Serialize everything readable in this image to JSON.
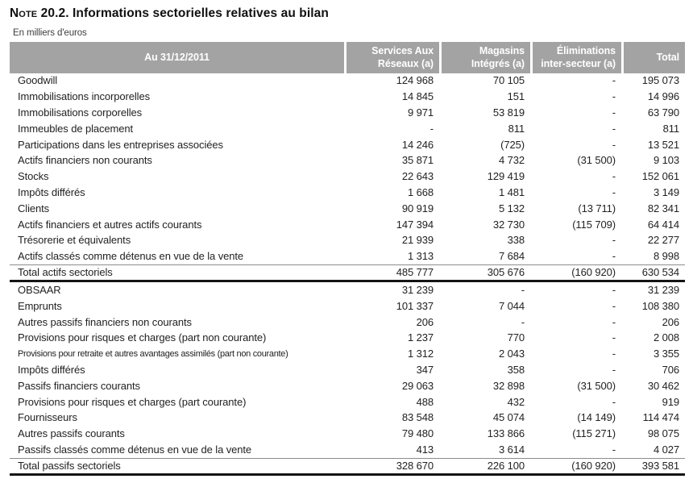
{
  "title": {
    "prefix": "Note",
    "rest": " 20.2. Informations sectorielles relatives au bilan"
  },
  "subtitle": "En milliers d'euros",
  "colors": {
    "header_bg": "#a3a3a3",
    "header_text": "#ffffff",
    "body_text": "#222222",
    "total_rule": "#141414",
    "thin_rule": "#8c8c8c"
  },
  "table": {
    "columns": [
      "Au 31/12/2011",
      "Services Aux Réseaux (a)",
      "Magasins Intégrés (a)",
      "Éliminations inter-secteur (a)",
      "Total"
    ],
    "rows": [
      {
        "label": "Goodwill",
        "values": [
          "124 968",
          "70 105",
          "-",
          "195 073"
        ]
      },
      {
        "label": "Immobilisations incorporelles",
        "values": [
          "14 845",
          "151",
          "-",
          "14 996"
        ]
      },
      {
        "label": "Immobilisations corporelles",
        "values": [
          "9 971",
          "53 819",
          "-",
          "63 790"
        ]
      },
      {
        "label": "Immeubles de placement",
        "values": [
          "-",
          "811",
          "-",
          "811"
        ]
      },
      {
        "label": "Participations dans les entreprises associées",
        "values": [
          "14 246",
          "(725)",
          "-",
          "13 521"
        ]
      },
      {
        "label": "Actifs financiers non courants",
        "values": [
          "35 871",
          "4 732",
          "(31 500)",
          "9 103"
        ]
      },
      {
        "label": "Stocks",
        "values": [
          "22 643",
          "129 419",
          "-",
          "152 061"
        ]
      },
      {
        "label": "Impôts différés",
        "values": [
          "1 668",
          "1 481",
          "-",
          "3 149"
        ]
      },
      {
        "label": "Clients",
        "values": [
          "90 919",
          "5 132",
          "(13 711)",
          "82 341"
        ]
      },
      {
        "label": "Actifs financiers et autres actifs courants",
        "values": [
          "147 394",
          "32 730",
          "(115 709)",
          "64 414"
        ]
      },
      {
        "label": "Trésorerie et équivalents",
        "values": [
          "21 939",
          "338",
          "-",
          "22 277"
        ]
      },
      {
        "label": "Actifs classés comme détenus en vue de la vente",
        "values": [
          "1 313",
          "7 684",
          "-",
          "8 998"
        ]
      },
      {
        "label": "Total actifs sectoriels",
        "values": [
          "485 777",
          "305 676",
          "(160 920)",
          "630 534"
        ],
        "total": true
      },
      {
        "label": "OBSAAR",
        "values": [
          "31 239",
          "-",
          "-",
          "31 239"
        ]
      },
      {
        "label": "Emprunts",
        "values": [
          "101 337",
          "7 044",
          "-",
          "108 380"
        ]
      },
      {
        "label": "Autres passifs financiers non courants",
        "values": [
          "206",
          "-",
          "-",
          "206"
        ]
      },
      {
        "label": "Provisions pour risques et charges (part non courante)",
        "values": [
          "1 237",
          "770",
          "-",
          "2 008"
        ]
      },
      {
        "label": "Provisions pour retraite et autres avantages assimilés (part non courante)",
        "values": [
          "1 312",
          "2 043",
          "-",
          "3 355"
        ],
        "condensed": true
      },
      {
        "label": "Impôts différés",
        "values": [
          "347",
          "358",
          "-",
          "706"
        ]
      },
      {
        "label": "Passifs financiers courants",
        "values": [
          "29 063",
          "32 898",
          "(31 500)",
          "30 462"
        ]
      },
      {
        "label": "Provisions pour risques et charges (part courante)",
        "values": [
          "488",
          "432",
          "-",
          "919"
        ]
      },
      {
        "label": "Fournisseurs",
        "values": [
          "83 548",
          "45 074",
          "(14 149)",
          "114 474"
        ]
      },
      {
        "label": "Autres passifs courants",
        "values": [
          "79 480",
          "133 866",
          "(115 271)",
          "98 075"
        ]
      },
      {
        "label": "Passifs classés comme détenus en vue de la vente",
        "values": [
          "413",
          "3 614",
          "-",
          "4 027"
        ]
      },
      {
        "label": "Total passifs sectoriels",
        "values": [
          "328 670",
          "226 100",
          "(160 920)",
          "393 581"
        ],
        "total": true
      }
    ]
  }
}
